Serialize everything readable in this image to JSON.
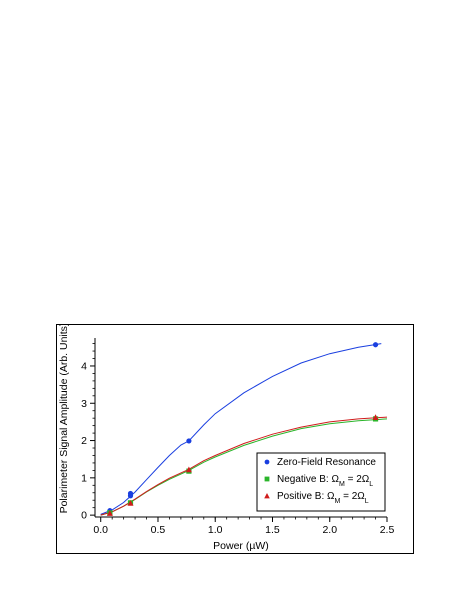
{
  "chart_data": {
    "type": "scatter",
    "xlabel": "Power (µW)",
    "ylabel": "Polarimeter Signal Amplitude (Arb. Units)",
    "xlim": [
      -0.05,
      2.5
    ],
    "ylim": [
      -0.05,
      4.75
    ],
    "x_ticks": [
      {
        "v": 0.0,
        "label": "0.0"
      },
      {
        "v": 0.5,
        "label": "0.5"
      },
      {
        "v": 1.0,
        "label": "1.0"
      },
      {
        "v": 1.5,
        "label": "1.5"
      },
      {
        "v": 2.0,
        "label": "2.0"
      },
      {
        "v": 2.5,
        "label": "2.5"
      }
    ],
    "y_ticks": [
      {
        "v": 0,
        "label": "0"
      },
      {
        "v": 1,
        "label": "1"
      },
      {
        "v": 2,
        "label": "2"
      },
      {
        "v": 3,
        "label": "3"
      },
      {
        "v": 4,
        "label": "4"
      }
    ],
    "grid": false,
    "legend_position": "bottom-right",
    "series": [
      {
        "name": "Zero-Field Resonance",
        "legend_parts": [
          "Zero-Field Resonance"
        ],
        "marker": "circle",
        "color": "#1a3fe0",
        "points": [
          [
            0.08,
            0.12
          ],
          [
            0.26,
            0.52
          ],
          [
            0.26,
            0.58
          ],
          [
            0.77,
            1.99
          ],
          [
            2.4,
            4.57
          ]
        ],
        "fit": [
          [
            0.0,
            0.02
          ],
          [
            0.1,
            0.14
          ],
          [
            0.2,
            0.34
          ],
          [
            0.3,
            0.62
          ],
          [
            0.4,
            0.95
          ],
          [
            0.5,
            1.28
          ],
          [
            0.6,
            1.6
          ],
          [
            0.7,
            1.88
          ],
          [
            0.77,
            1.99
          ],
          [
            0.9,
            2.42
          ],
          [
            1.0,
            2.72
          ],
          [
            1.25,
            3.28
          ],
          [
            1.5,
            3.72
          ],
          [
            1.75,
            4.08
          ],
          [
            2.0,
            4.33
          ],
          [
            2.25,
            4.5
          ],
          [
            2.45,
            4.6
          ]
        ]
      },
      {
        "name": "Negative B: ΩM = 2ΩL",
        "legend_parts": [
          "Negative B: Ω",
          "M",
          " = 2Ω",
          "L"
        ],
        "marker": "square",
        "color": "#2ab52a",
        "points": [
          [
            0.08,
            0.06
          ],
          [
            0.26,
            0.33
          ],
          [
            0.77,
            1.18
          ],
          [
            2.4,
            2.58
          ]
        ],
        "fit": [
          [
            0.0,
            0.0
          ],
          [
            0.1,
            0.09
          ],
          [
            0.2,
            0.24
          ],
          [
            0.3,
            0.42
          ],
          [
            0.4,
            0.62
          ],
          [
            0.5,
            0.8
          ],
          [
            0.6,
            0.96
          ],
          [
            0.77,
            1.2
          ],
          [
            0.9,
            1.42
          ],
          [
            1.0,
            1.56
          ],
          [
            1.25,
            1.87
          ],
          [
            1.5,
            2.12
          ],
          [
            1.75,
            2.32
          ],
          [
            2.0,
            2.45
          ],
          [
            2.25,
            2.53
          ],
          [
            2.5,
            2.58
          ]
        ]
      },
      {
        "name": "Positive B: ΩM = 2ΩL",
        "legend_parts": [
          "Positive B: Ω",
          "M",
          " = 2Ω",
          "L"
        ],
        "marker": "triangle",
        "color": "#d01c1c",
        "points": [
          [
            0.08,
            0.05
          ],
          [
            0.26,
            0.32
          ],
          [
            0.77,
            1.22
          ],
          [
            2.4,
            2.62
          ]
        ],
        "fit": [
          [
            0.0,
            0.0
          ],
          [
            0.1,
            0.09
          ],
          [
            0.2,
            0.24
          ],
          [
            0.3,
            0.43
          ],
          [
            0.4,
            0.63
          ],
          [
            0.5,
            0.82
          ],
          [
            0.6,
            0.99
          ],
          [
            0.77,
            1.23
          ],
          [
            0.9,
            1.46
          ],
          [
            1.0,
            1.6
          ],
          [
            1.25,
            1.92
          ],
          [
            1.5,
            2.17
          ],
          [
            1.75,
            2.36
          ],
          [
            2.0,
            2.5
          ],
          [
            2.25,
            2.58
          ],
          [
            2.5,
            2.63
          ]
        ]
      }
    ]
  }
}
